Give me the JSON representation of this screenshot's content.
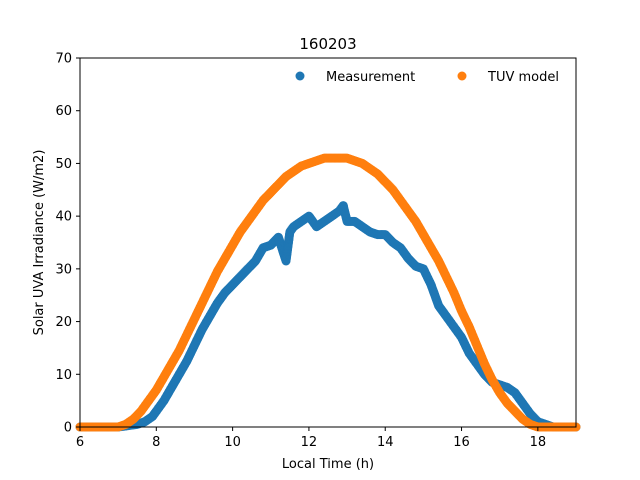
{
  "chart_data": {
    "type": "scatter",
    "title": "160203",
    "xlabel": "Local Time (h)",
    "ylabel": "Solar UVA Irradiance (W/m2)",
    "xlim": [
      6,
      19
    ],
    "ylim": [
      0,
      70
    ],
    "xticks": [
      6,
      8,
      10,
      12,
      14,
      16,
      18
    ],
    "yticks": [
      0,
      10,
      20,
      30,
      40,
      50,
      60,
      70
    ],
    "grid": false,
    "legend": "top-right",
    "series": [
      {
        "name": "Measurement",
        "color": "#1f77b4",
        "x": [
          6.0,
          7.0,
          7.5,
          7.7,
          7.9,
          8.0,
          8.2,
          8.4,
          8.6,
          8.8,
          9.0,
          9.2,
          9.4,
          9.6,
          9.8,
          10.0,
          10.2,
          10.4,
          10.6,
          10.8,
          11.0,
          11.2,
          11.4,
          11.5,
          11.6,
          11.8,
          12.0,
          12.2,
          12.4,
          12.6,
          12.8,
          12.9,
          13.0,
          13.2,
          13.4,
          13.6,
          13.8,
          14.0,
          14.2,
          14.4,
          14.6,
          14.8,
          15.0,
          15.2,
          15.4,
          15.6,
          15.8,
          16.0,
          16.2,
          16.4,
          16.6,
          16.8,
          17.0,
          17.2,
          17.4,
          17.6,
          17.8,
          18.0,
          18.2,
          18.4,
          18.6,
          18.8,
          19.0
        ],
        "y": [
          0,
          0,
          0.5,
          1,
          2,
          3,
          5,
          7.5,
          10,
          12.5,
          15.5,
          18.5,
          21,
          23.5,
          25.5,
          27,
          28.5,
          30,
          31.5,
          34,
          34.5,
          36,
          31.5,
          37,
          38,
          39,
          40,
          38,
          39,
          40,
          41,
          42,
          39,
          39,
          38,
          37,
          36.5,
          36.5,
          35,
          34,
          32,
          30.5,
          30,
          27,
          23,
          21,
          19,
          17,
          14,
          12,
          10,
          8.5,
          8,
          7.5,
          6.5,
          4.5,
          2.5,
          1,
          0.5,
          0,
          0,
          0,
          0
        ]
      },
      {
        "name": "TUV model",
        "color": "#ff7f0e",
        "x": [
          6.0,
          7.0,
          7.2,
          7.4,
          7.6,
          7.8,
          8.0,
          8.2,
          8.4,
          8.6,
          8.8,
          9.0,
          9.2,
          9.4,
          9.6,
          9.8,
          10.0,
          10.2,
          10.4,
          10.6,
          10.8,
          11.0,
          11.2,
          11.4,
          11.6,
          11.8,
          12.0,
          12.2,
          12.4,
          12.6,
          12.8,
          13.0,
          13.2,
          13.4,
          13.6,
          13.8,
          14.0,
          14.2,
          14.4,
          14.6,
          14.8,
          15.0,
          15.2,
          15.4,
          15.6,
          15.8,
          16.0,
          16.2,
          16.4,
          16.6,
          16.8,
          17.0,
          17.2,
          17.4,
          17.6,
          17.8,
          18.0,
          18.2,
          18.4,
          18.6,
          19.0
        ],
        "y": [
          0,
          0,
          0.5,
          1.5,
          3,
          5,
          7,
          9.5,
          12,
          14.5,
          17.5,
          20.5,
          23.5,
          26.5,
          29.5,
          32,
          34.5,
          37,
          39,
          41,
          43,
          44.5,
          46,
          47.5,
          48.5,
          49.5,
          50,
          50.5,
          51,
          51,
          51,
          51,
          50.5,
          50,
          49,
          48,
          46.5,
          45,
          43,
          41,
          39,
          36.5,
          34,
          31.5,
          28.5,
          25.5,
          22,
          19,
          15.5,
          12,
          9,
          6.5,
          4.5,
          3,
          1.5,
          0.5,
          0,
          0,
          0,
          0,
          0
        ]
      }
    ]
  }
}
